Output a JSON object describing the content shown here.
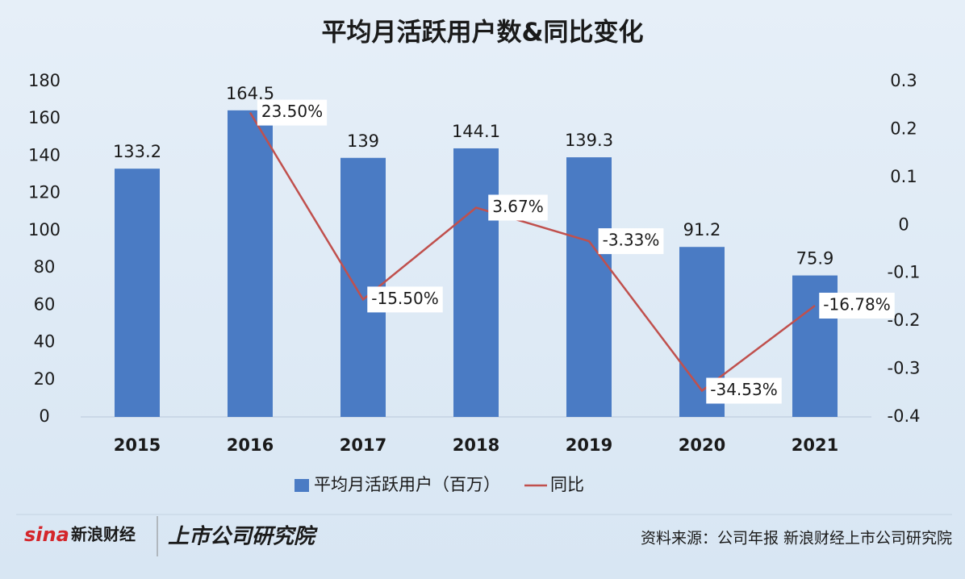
{
  "chart_data": {
    "type": "bar",
    "title": "平均月活跃用户数&同比变化",
    "categories": [
      "2015",
      "2016",
      "2017",
      "2018",
      "2019",
      "2020",
      "2021"
    ],
    "series": [
      {
        "name": "平均月活跃用户（百万）",
        "type": "bar",
        "color": "#4a7bc4",
        "values": [
          133.2,
          164.5,
          139,
          144.1,
          139.3,
          91.2,
          75.9
        ]
      },
      {
        "name": "同比",
        "type": "line",
        "axis": "y2",
        "color": "#c0504d",
        "values": [
          null,
          0.235,
          -0.155,
          0.0367,
          -0.0333,
          -0.3453,
          -0.1678
        ],
        "value_labels": [
          null,
          "23.50%",
          "-15.50%",
          "3.67%",
          "-3.33%",
          "-34.53%",
          "-16.78%"
        ]
      }
    ],
    "ylim": [
      0,
      180
    ],
    "yticks": [
      0,
      20,
      40,
      60,
      80,
      100,
      120,
      140,
      160,
      180
    ],
    "y2lim": [
      -0.4,
      0.3
    ],
    "y2ticks": [
      -0.4,
      -0.3,
      -0.2,
      -0.1,
      0,
      0.1,
      0.2,
      0.3
    ],
    "legend": "bottom"
  },
  "footer": {
    "logo_mark": "sina",
    "logo_left": "新浪财经",
    "logo_right": "上市公司研究院",
    "source": "资料来源：公司年报 新浪财经上市公司研究院"
  }
}
